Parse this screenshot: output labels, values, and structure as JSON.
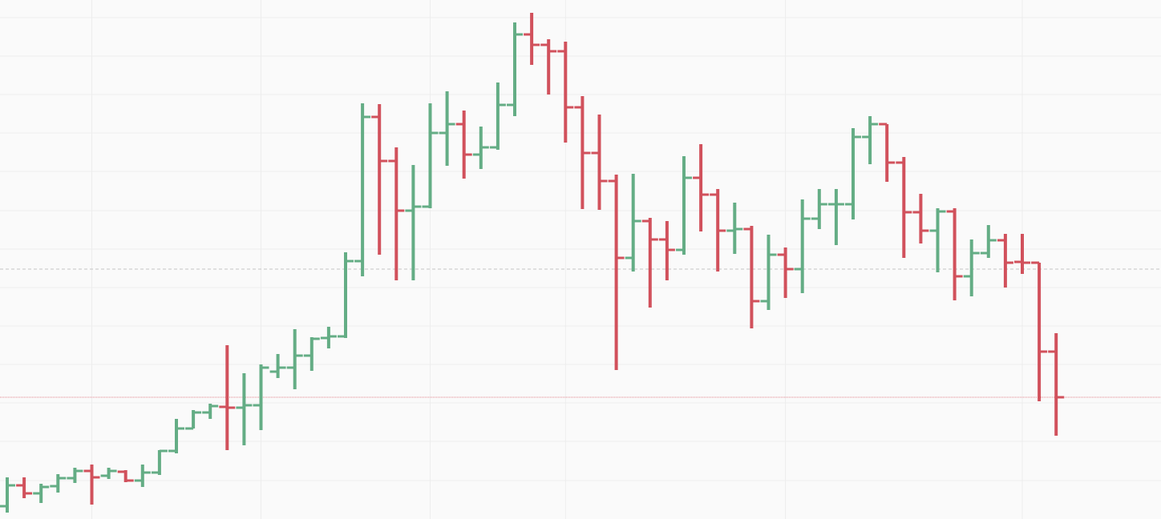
{
  "chart_data": {
    "type": "ohlc",
    "up_color": "#64ad85",
    "down_color": "#d1515c",
    "ylim": [
      0,
      648
    ],
    "yticks": [
      626,
      578,
      530,
      482,
      434,
      385,
      337,
      289,
      241,
      193,
      145,
      97,
      48
    ],
    "xgrid": [
      5,
      15,
      25,
      33,
      46,
      60
    ],
    "grid": true,
    "hlines": [
      {
        "value": 312,
        "style": "dashed",
        "color": "#c4c4c4"
      },
      {
        "value": 152,
        "style": "dotted",
        "color": "#e0808a"
      }
    ],
    "open": [
      16,
      42,
      32,
      41,
      51,
      60,
      54,
      59,
      48,
      58,
      85,
      113,
      133,
      140,
      139,
      142,
      184,
      189,
      204,
      226,
      228,
      322,
      502,
      447,
      385,
      390,
      482,
      493,
      455,
      464,
      517,
      605,
      592,
      584,
      514,
      457,
      422,
      326,
      372,
      349,
      336,
      426,
      405,
      360,
      362,
      272,
      330,
      312,
      375,
      393,
      393,
      477,
      493,
      445,
      383,
      360,
      384,
      303,
      332,
      348,
      321,
      320,
      209
    ],
    "high": [
      52,
      52,
      44,
      56,
      64,
      68,
      64,
      61,
      68,
      86,
      125,
      136,
      144,
      217,
      182,
      193,
      206,
      237,
      227,
      240,
      333,
      519,
      518,
      464,
      442,
      519,
      534,
      510,
      490,
      545,
      620,
      632,
      599,
      596,
      528,
      505,
      430,
      431,
      376,
      372,
      453,
      468,
      412,
      395,
      366,
      355,
      339,
      399,
      412,
      412,
      488,
      503,
      493,
      452,
      406,
      388,
      388,
      349,
      367,
      356,
      356,
      320,
      232
    ],
    "low": [
      8,
      26,
      20,
      33,
      45,
      18,
      50,
      46,
      40,
      55,
      82,
      113,
      125,
      86,
      92,
      111,
      176,
      162,
      185,
      213,
      226,
      303,
      330,
      298,
      298,
      388,
      441,
      425,
      437,
      461,
      503,
      567,
      530,
      470,
      387,
      386,
      186,
      309,
      264,
      298,
      330,
      359,
      309,
      331,
      238,
      261,
      276,
      282,
      362,
      342,
      374,
      443,
      421,
      326,
      344,
      308,
      273,
      278,
      326,
      289,
      306,
      147,
      104
    ],
    "close": [
      42,
      32,
      40,
      51,
      60,
      52,
      60,
      48,
      58,
      85,
      113,
      133,
      141,
      139,
      142,
      189,
      189,
      204,
      225,
      228,
      322,
      502,
      447,
      385,
      390,
      482,
      493,
      455,
      464,
      517,
      605,
      592,
      584,
      514,
      457,
      422,
      326,
      372,
      349,
      336,
      426,
      405,
      360,
      362,
      272,
      330,
      312,
      375,
      393,
      393,
      477,
      493,
      445,
      383,
      360,
      384,
      303,
      332,
      348,
      320,
      320,
      209,
      152
    ]
  }
}
